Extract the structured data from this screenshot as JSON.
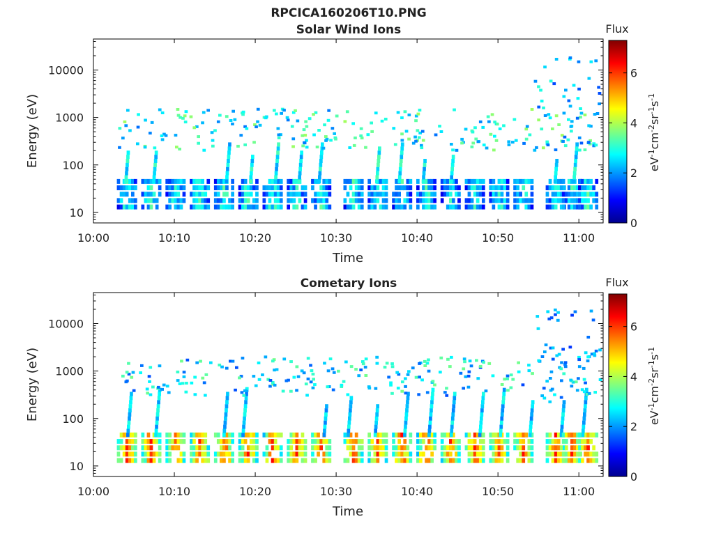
{
  "figure_title": "RPCICA160206T10.PNG",
  "colorbar": {
    "title": "Flux",
    "label_parts": [
      "eV",
      "-1",
      "cm",
      "-2",
      "sr",
      "-1",
      "s",
      "-1"
    ],
    "min": 0,
    "max": 7.3,
    "ticks": [
      "0",
      "2",
      "4",
      "6"
    ]
  },
  "chart_data": [
    {
      "type": "heatmap",
      "title": "Solar Wind Ions",
      "xlabel": "Time",
      "ylabel": "Energy (eV)",
      "y_scale": "log",
      "xlim": [
        "10:00",
        "11:03"
      ],
      "ylim": [
        6,
        45000
      ],
      "x_ticks": [
        "10:00",
        "10:10",
        "10:20",
        "10:30",
        "10:40",
        "10:50",
        "11:00"
      ],
      "y_ticks": [
        "10",
        "100",
        "1000",
        "10000"
      ],
      "burst_times": [
        "10:04",
        "10:07",
        "10:10",
        "10:13",
        "10:16",
        "10:19",
        "10:22",
        "10:25",
        "10:28",
        "10:32",
        "10:35",
        "10:38",
        "10:41",
        "10:44",
        "10:47",
        "10:50",
        "10:53",
        "10:57",
        "10:59",
        "11:01"
      ],
      "low_band_energy": [
        13,
        45
      ],
      "low_band_flux": 2.5,
      "scattered_energy": [
        200,
        1500
      ],
      "scattered_flux": 2.8
    },
    {
      "type": "heatmap",
      "title": "Cometary Ions",
      "xlabel": "Time",
      "ylabel": "Energy (eV)",
      "y_scale": "log",
      "xlim": [
        "10:00",
        "11:03"
      ],
      "ylim": [
        6,
        45000
      ],
      "x_ticks": [
        "10:00",
        "10:10",
        "10:20",
        "10:30",
        "10:40",
        "10:50",
        "11:00"
      ],
      "y_ticks": [
        "10",
        "100",
        "1000",
        "10000"
      ],
      "burst_times": [
        "10:04",
        "10:07",
        "10:10",
        "10:13",
        "10:16",
        "10:19",
        "10:22",
        "10:25",
        "10:28",
        "10:32",
        "10:35",
        "10:38",
        "10:41",
        "10:44",
        "10:47",
        "10:50",
        "10:53",
        "10:57",
        "10:59",
        "11:01"
      ],
      "low_band_energy": [
        13,
        45
      ],
      "low_band_flux": 5.0,
      "scattered_energy": [
        300,
        2000
      ],
      "scattered_flux": 2.5
    }
  ]
}
